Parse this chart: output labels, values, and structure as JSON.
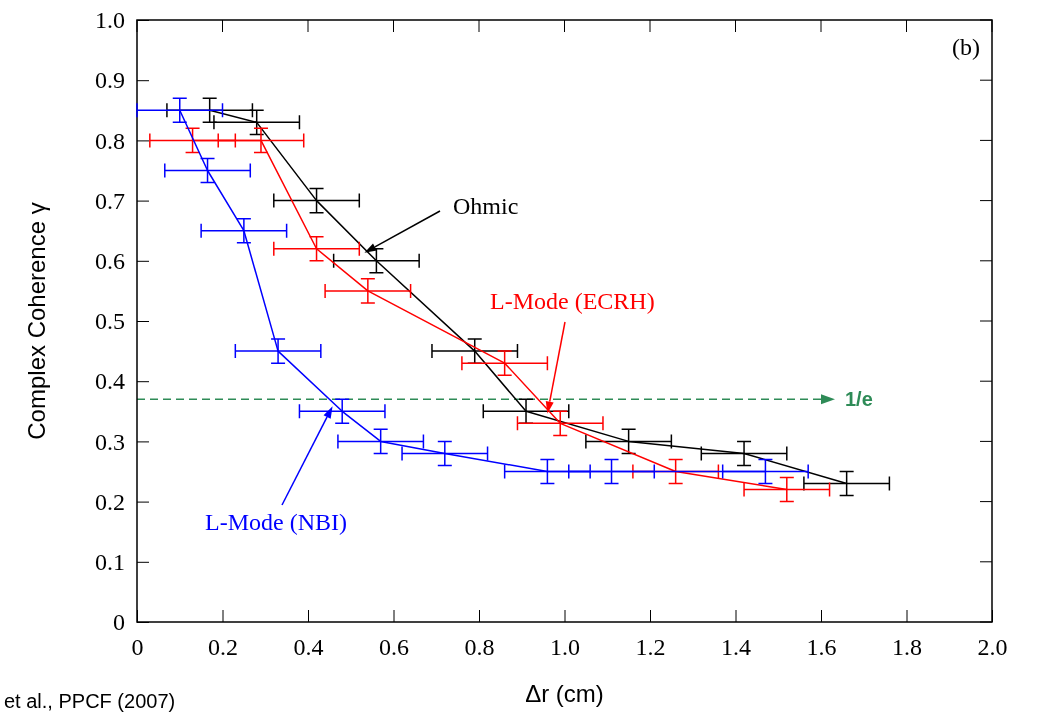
{
  "chart_data": {
    "type": "line",
    "xlabel": "Δr (cm)",
    "ylabel": "Complex Coherence γ",
    "xlim": [
      0,
      2.0
    ],
    "xticks": [
      {
        "value": 0,
        "label": "0"
      },
      0.2,
      0.4,
      0.6,
      0.8,
      {
        "value": 1,
        "label": "1.0"
      },
      1.2,
      1.4,
      1.6,
      1.8,
      {
        "value": 2,
        "label": "2.0"
      }
    ],
    "ylim": [
      0,
      1.0
    ],
    "yticks": [
      {
        "value": 0,
        "label": "0"
      },
      0.1,
      0.2,
      0.3,
      0.4,
      0.5,
      0.6,
      0.7,
      0.8,
      0.9,
      {
        "value": 1,
        "label": "1.0"
      }
    ],
    "grid": false,
    "marker": "none",
    "line_style": "solid",
    "series": [
      {
        "name": "Ohmic",
        "color": "#000000",
        "x": [
          0.17,
          0.28,
          0.42,
          0.56,
          0.79,
          0.91,
          1.15,
          1.42,
          1.66
        ],
        "values": [
          0.85,
          0.83,
          0.7,
          0.6,
          0.45,
          0.35,
          0.3,
          0.28,
          0.23
        ],
        "errors": [
          0.02,
          0.02,
          0.02,
          0.02,
          0.02,
          0.02,
          0.02,
          0.02,
          0.02
        ],
        "xerrors": [
          0.1,
          0.1,
          0.1,
          0.1,
          0.1,
          0.1,
          0.1,
          0.1,
          0.1
        ]
      },
      {
        "name": "L-Mode (ECRH)",
        "color": "#ff0000",
        "x": [
          0.13,
          0.29,
          0.42,
          0.54,
          0.86,
          0.99,
          1.26,
          1.52
        ],
        "values": [
          0.8,
          0.8,
          0.62,
          0.55,
          0.43,
          0.33,
          0.25,
          0.22
        ],
        "errors": [
          0.02,
          0.02,
          0.02,
          0.02,
          0.02,
          0.02,
          0.02,
          0.02
        ],
        "xerrors": [
          0.1,
          0.1,
          0.1,
          0.1,
          0.1,
          0.1,
          0.1,
          0.1
        ]
      },
      {
        "name": "L-Mode (NBI)",
        "color": "#0000ff",
        "x": [
          0.1,
          0.165,
          0.25,
          0.33,
          0.48,
          0.57,
          0.72,
          0.96,
          1.11,
          1.47
        ],
        "values": [
          0.85,
          0.75,
          0.65,
          0.45,
          0.35,
          0.3,
          0.28,
          0.25,
          0.25,
          0.25
        ],
        "errors": [
          0.02,
          0.02,
          0.02,
          0.02,
          0.02,
          0.02,
          0.02,
          0.02,
          0.02,
          0.02
        ],
        "xerrors": [
          0.1,
          0.1,
          0.1,
          0.1,
          0.1,
          0.1,
          0.1,
          0.1,
          0.1,
          0.1
        ]
      }
    ],
    "ref_lines": [
      {
        "axis": "y",
        "value": 0.37,
        "label": "1/e",
        "color": "#2e8b57",
        "line_style": "dashed"
      }
    ],
    "annotations": [
      "(b)",
      "et al., PPCF (2007)"
    ]
  }
}
